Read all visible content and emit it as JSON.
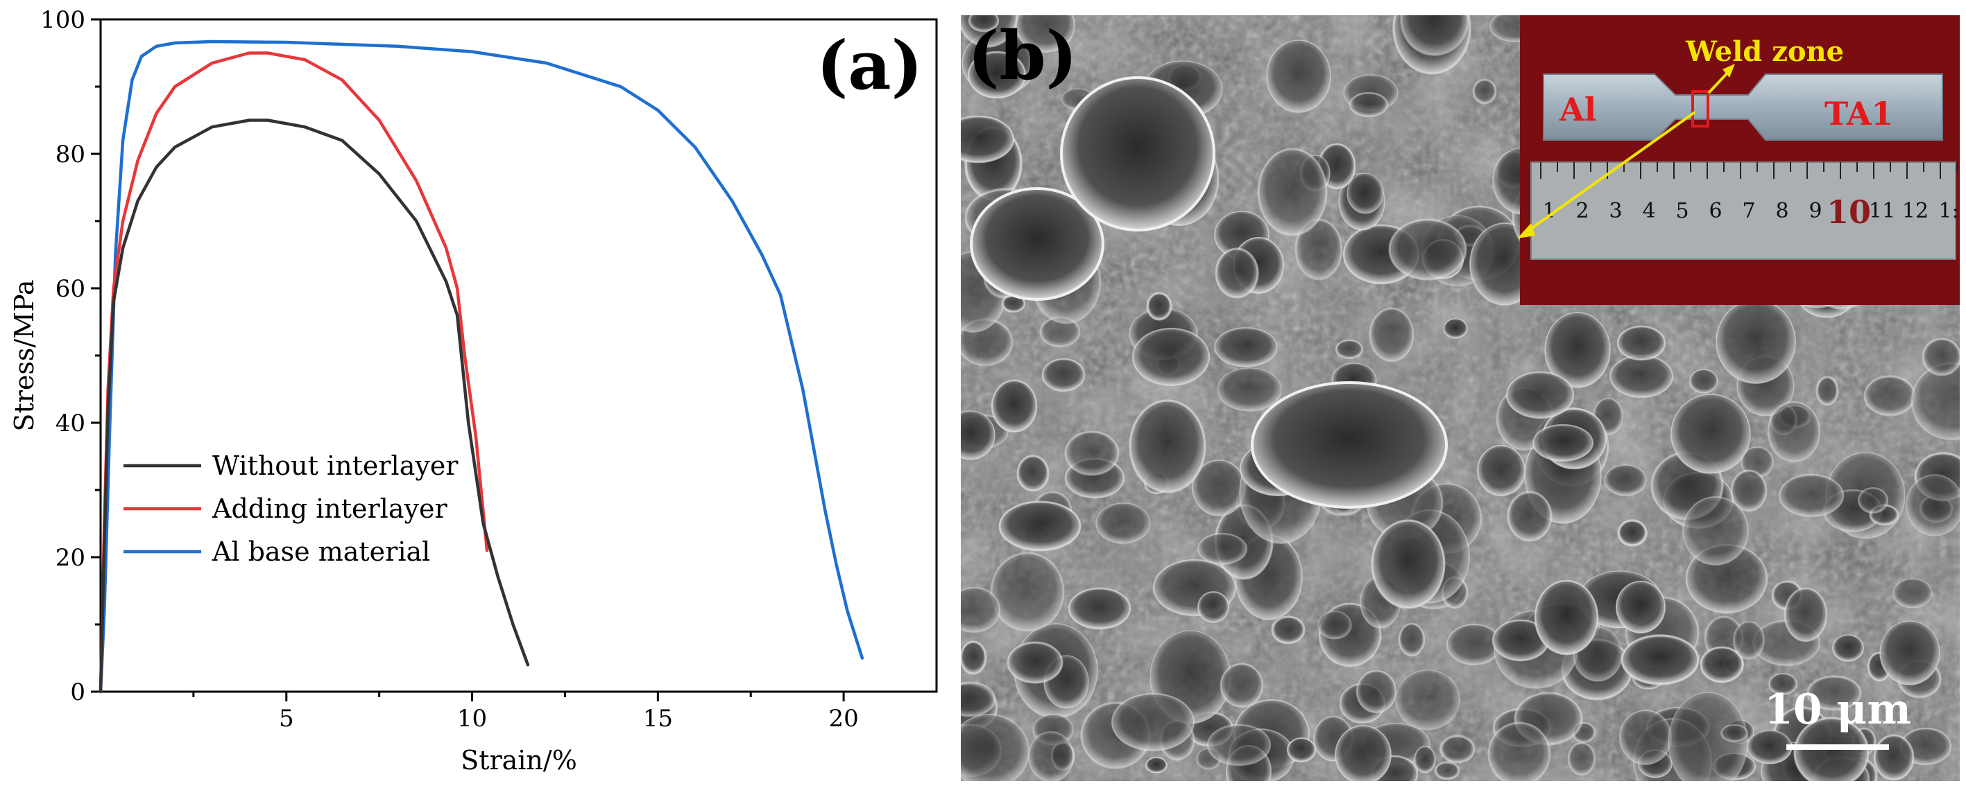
{
  "chart_data": {
    "type": "line",
    "panel_label": "(a)",
    "xlabel": "Strain/%",
    "ylabel": "Stress/MPa",
    "xlim": [
      0,
      22.5
    ],
    "ylim": [
      0,
      100
    ],
    "x_ticks": [
      5,
      10,
      15,
      20
    ],
    "y_ticks": [
      0,
      20,
      40,
      60,
      80,
      100
    ],
    "grid": false,
    "legend_position": "bottom-left",
    "series": [
      {
        "name": "Without interlayer",
        "color": "#333333",
        "points": [
          [
            0,
            0
          ],
          [
            0.1,
            22
          ],
          [
            0.2,
            42
          ],
          [
            0.35,
            58
          ],
          [
            0.6,
            66
          ],
          [
            1,
            73
          ],
          [
            1.5,
            78
          ],
          [
            2,
            81
          ],
          [
            3,
            84
          ],
          [
            4,
            85
          ],
          [
            4.5,
            85
          ],
          [
            5.5,
            84
          ],
          [
            6.5,
            82
          ],
          [
            7.5,
            77
          ],
          [
            8.5,
            70
          ],
          [
            9.3,
            61
          ],
          [
            9.6,
            56
          ],
          [
            9.9,
            40
          ],
          [
            10.3,
            25
          ],
          [
            10.7,
            17
          ],
          [
            11.1,
            10
          ],
          [
            11.5,
            4
          ]
        ]
      },
      {
        "name": "Adding interlayer",
        "color": "#e8373a",
        "points": [
          [
            0,
            0
          ],
          [
            0.1,
            25
          ],
          [
            0.2,
            45
          ],
          [
            0.35,
            60
          ],
          [
            0.6,
            70
          ],
          [
            1,
            79
          ],
          [
            1.5,
            86
          ],
          [
            2,
            90
          ],
          [
            3,
            93.5
          ],
          [
            4,
            95
          ],
          [
            4.5,
            95
          ],
          [
            5.5,
            94
          ],
          [
            6.5,
            91
          ],
          [
            7.5,
            85
          ],
          [
            8.5,
            76
          ],
          [
            9.3,
            66
          ],
          [
            9.6,
            60
          ],
          [
            9.8,
            50
          ],
          [
            10.1,
            38
          ],
          [
            10.4,
            21
          ]
        ]
      },
      {
        "name": "Al base material",
        "color": "#1f6fd1",
        "points": [
          [
            0,
            0
          ],
          [
            0.1,
            12
          ],
          [
            0.25,
            40
          ],
          [
            0.4,
            65
          ],
          [
            0.6,
            82
          ],
          [
            0.85,
            91
          ],
          [
            1.1,
            94.5
          ],
          [
            1.5,
            96
          ],
          [
            2,
            96.5
          ],
          [
            3,
            96.7
          ],
          [
            5,
            96.6
          ],
          [
            8,
            96
          ],
          [
            10,
            95.2
          ],
          [
            12,
            93.5
          ],
          [
            14,
            90
          ],
          [
            15,
            86.5
          ],
          [
            16,
            81
          ],
          [
            17,
            73
          ],
          [
            17.8,
            65
          ],
          [
            18.3,
            59
          ],
          [
            18.6,
            52
          ],
          [
            18.9,
            45
          ],
          [
            19.2,
            36
          ],
          [
            19.5,
            27
          ],
          [
            19.8,
            19
          ],
          [
            20.1,
            12
          ],
          [
            20.5,
            5
          ]
        ]
      }
    ]
  },
  "sem_image": {
    "panel_label": "(b)",
    "scale_bar_label": "10 μm",
    "inset": {
      "left_label": "Al",
      "right_label": "TA1",
      "callout_label": "Weld zone",
      "ruler_numbers": [
        "1",
        "2",
        "3",
        "4",
        "5",
        "6",
        "7",
        "8",
        "9",
        "10",
        "11",
        "12",
        "1:"
      ],
      "colors": {
        "background": "#7a0d12",
        "label": "#e11b1b",
        "callout": "#f5e400"
      }
    }
  }
}
